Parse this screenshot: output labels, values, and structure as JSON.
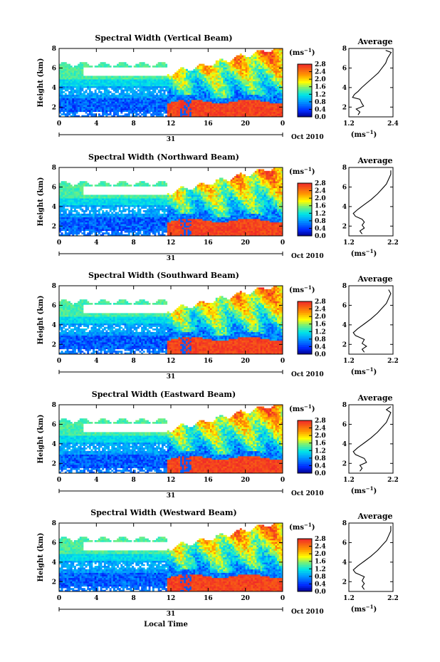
{
  "figure": {
    "xlabel": "Local Time",
    "date_label": "Oct 2010",
    "day_label": "31",
    "cbar_unit": "(ms",
    "cbar_unit_exp": "−1",
    "cbar_unit_close": ")",
    "avg_xlabel": "(ms",
    "avg_xlabel_exp": "−1",
    "avg_xlabel_close": ")",
    "ylabel": "Height (km)",
    "avg_title": "Average"
  },
  "chart_data": [
    {
      "type": "heatmap",
      "title": "Spectral Width (Vertical Beam)",
      "ylabel": "Height (km)",
      "xlabel": "",
      "x_ticks": [
        "0",
        "4",
        "8",
        "12",
        "16",
        "20",
        "0"
      ],
      "y_ticks": [
        "2",
        "4",
        "6",
        "8"
      ],
      "xlim": [
        0,
        24
      ],
      "ylim": [
        1,
        8
      ],
      "colorbar": {
        "unit": "(ms−1)",
        "min": 0.0,
        "max": 2.8,
        "ticks": [
          "0.0",
          "0.4",
          "0.8",
          "1.2",
          "1.6",
          "2.0",
          "2.4",
          "2.8"
        ]
      },
      "average": {
        "title": "Average",
        "xlim": [
          1.2,
          2.4
        ],
        "x_ticks": [
          "1.2",
          "2.4"
        ],
        "y_ticks": [
          "2",
          "4",
          "6",
          "8"
        ],
        "profile": [
          [
            1.45,
            1.2
          ],
          [
            1.5,
            1.5
          ],
          [
            1.4,
            1.8
          ],
          [
            1.6,
            2.1
          ],
          [
            1.55,
            2.4
          ],
          [
            1.5,
            2.8
          ],
          [
            1.3,
            3.0
          ],
          [
            1.35,
            3.3
          ],
          [
            1.45,
            3.6
          ],
          [
            1.55,
            4.0
          ],
          [
            1.7,
            4.5
          ],
          [
            1.85,
            5.0
          ],
          [
            2.0,
            5.5
          ],
          [
            2.1,
            6.0
          ],
          [
            2.2,
            6.5
          ],
          [
            2.25,
            7.0
          ],
          [
            2.3,
            7.3
          ],
          [
            2.35,
            7.6
          ],
          [
            2.2,
            7.8
          ]
        ]
      }
    },
    {
      "type": "heatmap",
      "title": "Spectral Width (Northward Beam)",
      "ylabel": "Height (km)",
      "xlabel": "",
      "x_ticks": [
        "0",
        "4",
        "8",
        "12",
        "16",
        "20",
        "0"
      ],
      "y_ticks": [
        "2",
        "4",
        "6",
        "8"
      ],
      "xlim": [
        0,
        24
      ],
      "ylim": [
        1,
        8
      ],
      "colorbar": {
        "unit": "(ms−1)",
        "min": 0.0,
        "max": 2.8,
        "ticks": [
          "0.0",
          "0.4",
          "0.8",
          "1.2",
          "1.6",
          "2.0",
          "2.4",
          "2.8"
        ]
      },
      "average": {
        "title": "Average",
        "xlim": [
          1.2,
          2.2
        ],
        "x_ticks": [
          "1.2",
          "2.2"
        ],
        "y_ticks": [
          "2",
          "4",
          "6",
          "8"
        ],
        "profile": [
          [
            1.5,
            1.2
          ],
          [
            1.45,
            1.5
          ],
          [
            1.55,
            1.8
          ],
          [
            1.5,
            2.1
          ],
          [
            1.55,
            2.4
          ],
          [
            1.5,
            2.7
          ],
          [
            1.35,
            3.0
          ],
          [
            1.3,
            3.3
          ],
          [
            1.4,
            3.7
          ],
          [
            1.55,
            4.2
          ],
          [
            1.7,
            4.7
          ],
          [
            1.85,
            5.3
          ],
          [
            1.95,
            5.8
          ],
          [
            2.05,
            6.3
          ],
          [
            2.1,
            6.8
          ],
          [
            2.15,
            7.3
          ],
          [
            2.15,
            7.7
          ]
        ]
      }
    },
    {
      "type": "heatmap",
      "title": "Spectral Width (Southward Beam)",
      "ylabel": "Height (km)",
      "xlabel": "",
      "x_ticks": [
        "0",
        "4",
        "8",
        "12",
        "16",
        "20",
        "0"
      ],
      "y_ticks": [
        "2",
        "4",
        "6",
        "8"
      ],
      "xlim": [
        0,
        24
      ],
      "ylim": [
        1,
        8
      ],
      "colorbar": {
        "unit": "(ms−1)",
        "min": 0.0,
        "max": 2.8,
        "ticks": [
          "0.0",
          "0.4",
          "0.8",
          "1.2",
          "1.6",
          "2.0",
          "2.4",
          "2.8"
        ]
      },
      "average": {
        "title": "Average",
        "xlim": [
          1.2,
          2.2
        ],
        "x_ticks": [
          "1.2",
          "2.2"
        ],
        "y_ticks": [
          "2",
          "4",
          "6",
          "8"
        ],
        "profile": [
          [
            1.55,
            1.2
          ],
          [
            1.5,
            1.5
          ],
          [
            1.6,
            1.8
          ],
          [
            1.5,
            2.1
          ],
          [
            1.55,
            2.5
          ],
          [
            1.35,
            2.9
          ],
          [
            1.3,
            3.2
          ],
          [
            1.4,
            3.6
          ],
          [
            1.55,
            4.1
          ],
          [
            1.7,
            4.6
          ],
          [
            1.85,
            5.2
          ],
          [
            1.95,
            5.7
          ],
          [
            2.05,
            6.2
          ],
          [
            2.1,
            6.7
          ],
          [
            2.15,
            7.2
          ],
          [
            2.1,
            7.6
          ]
        ]
      }
    },
    {
      "type": "heatmap",
      "title": "Spectral Width (Eastward Beam)",
      "ylabel": "Height (km)",
      "xlabel": "",
      "x_ticks": [
        "0",
        "4",
        "8",
        "12",
        "16",
        "20",
        "0"
      ],
      "y_ticks": [
        "2",
        "4",
        "6",
        "8"
      ],
      "xlim": [
        0,
        24
      ],
      "ylim": [
        1,
        8
      ],
      "colorbar": {
        "unit": "(ms−1)",
        "min": 0.0,
        "max": 2.8,
        "ticks": [
          "0.0",
          "0.4",
          "0.8",
          "1.2",
          "1.6",
          "2.0",
          "2.4",
          "2.8"
        ]
      },
      "average": {
        "title": "Average",
        "xlim": [
          1.2,
          2.2
        ],
        "x_ticks": [
          "1.2",
          "2.2"
        ],
        "y_ticks": [
          "2",
          "4",
          "6",
          "8"
        ],
        "profile": [
          [
            1.45,
            1.2
          ],
          [
            1.5,
            1.5
          ],
          [
            1.45,
            1.8
          ],
          [
            1.6,
            2.1
          ],
          [
            1.55,
            2.5
          ],
          [
            1.35,
            2.9
          ],
          [
            1.3,
            3.2
          ],
          [
            1.4,
            3.6
          ],
          [
            1.55,
            4.1
          ],
          [
            1.7,
            4.6
          ],
          [
            1.85,
            5.2
          ],
          [
            1.95,
            5.7
          ],
          [
            2.05,
            6.2
          ],
          [
            2.1,
            6.7
          ],
          [
            2.15,
            7.2
          ],
          [
            2.05,
            7.5
          ],
          [
            2.15,
            7.8
          ]
        ]
      }
    },
    {
      "type": "heatmap",
      "title": "Spectral Width (Westward Beam)",
      "ylabel": "Height (km)",
      "xlabel": "Local Time",
      "x_ticks": [
        "0",
        "4",
        "8",
        "12",
        "16",
        "20",
        "0"
      ],
      "y_ticks": [
        "2",
        "4",
        "6",
        "8"
      ],
      "xlim": [
        0,
        24
      ],
      "ylim": [
        1,
        8
      ],
      "colorbar": {
        "unit": "(ms−1)",
        "min": 0.0,
        "max": 2.8,
        "ticks": [
          "0.0",
          "0.4",
          "0.8",
          "1.2",
          "1.6",
          "2.0",
          "2.4",
          "2.8"
        ]
      },
      "average": {
        "title": "Average",
        "xlim": [
          1.2,
          2.2
        ],
        "x_ticks": [
          "1.2",
          "2.2"
        ],
        "y_ticks": [
          "2",
          "4",
          "6",
          "8"
        ],
        "profile": [
          [
            1.55,
            1.2
          ],
          [
            1.5,
            1.5
          ],
          [
            1.55,
            1.8
          ],
          [
            1.5,
            2.1
          ],
          [
            1.55,
            2.5
          ],
          [
            1.35,
            2.9
          ],
          [
            1.3,
            3.2
          ],
          [
            1.4,
            3.6
          ],
          [
            1.55,
            4.1
          ],
          [
            1.7,
            4.6
          ],
          [
            1.85,
            5.2
          ],
          [
            1.95,
            5.7
          ],
          [
            2.05,
            6.2
          ],
          [
            2.1,
            6.7
          ],
          [
            2.15,
            7.2
          ],
          [
            2.15,
            7.7
          ]
        ]
      }
    }
  ]
}
